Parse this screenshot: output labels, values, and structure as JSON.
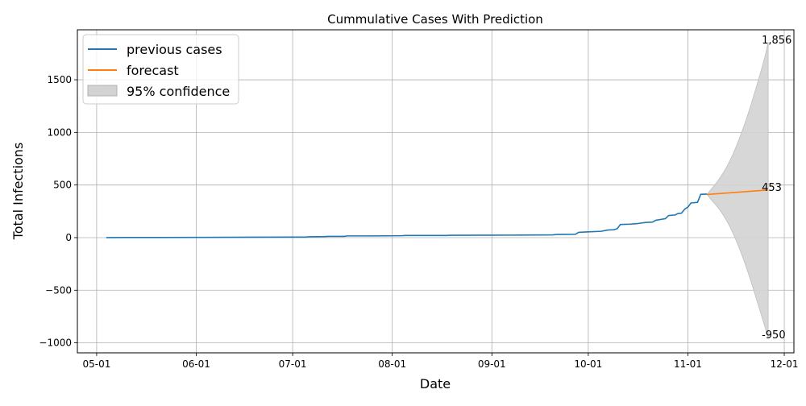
{
  "chart_data": {
    "type": "line",
    "title": "Cummulative Cases With Prediction",
    "xlabel": "Date",
    "ylabel": "Total Infections",
    "x_ticks": [
      "05-01",
      "06-01",
      "07-01",
      "08-01",
      "09-01",
      "10-01",
      "11-01",
      "12-01"
    ],
    "x_tick_dates": [
      "2020-05-01",
      "2020-06-01",
      "2020-07-01",
      "2020-08-01",
      "2020-09-01",
      "2020-10-01",
      "2020-11-01",
      "2020-12-01"
    ],
    "xlim": [
      "2020-04-25",
      "2020-12-04"
    ],
    "y_ticks": [
      -1000,
      -500,
      0,
      500,
      1000,
      1500
    ],
    "y_tick_labels": [
      "−1000",
      "−500",
      "0",
      "500",
      "1000",
      "1500"
    ],
    "ylim": [
      -1095,
      1975
    ],
    "grid": true,
    "legend_position": "top-left",
    "legend": [
      {
        "label": "previous cases",
        "kind": "line",
        "color": "#1f77b4"
      },
      {
        "label": "forecast",
        "kind": "line",
        "color": "#ff7f0e"
      },
      {
        "label": "95% confidence",
        "kind": "band",
        "color": "#d3d3d3"
      }
    ],
    "series": [
      {
        "name": "previous cases",
        "color": "#1f77b4",
        "points": [
          [
            "2020-05-04",
            0
          ],
          [
            "2020-05-10",
            1
          ],
          [
            "2020-05-20",
            1
          ],
          [
            "2020-06-01",
            2
          ],
          [
            "2020-06-10",
            3
          ],
          [
            "2020-06-20",
            4
          ],
          [
            "2020-07-01",
            5
          ],
          [
            "2020-07-05",
            5
          ],
          [
            "2020-07-06",
            8
          ],
          [
            "2020-07-11",
            10
          ],
          [
            "2020-07-12",
            12
          ],
          [
            "2020-07-17",
            12
          ],
          [
            "2020-07-18",
            16
          ],
          [
            "2020-07-25",
            16
          ],
          [
            "2020-08-04",
            18
          ],
          [
            "2020-08-05",
            20
          ],
          [
            "2020-08-18",
            20
          ],
          [
            "2020-08-19",
            22
          ],
          [
            "2020-09-01",
            23
          ],
          [
            "2020-09-10",
            24
          ],
          [
            "2020-09-20",
            26
          ],
          [
            "2020-09-21",
            30
          ],
          [
            "2020-09-27",
            32
          ],
          [
            "2020-09-28",
            50
          ],
          [
            "2020-10-01",
            55
          ],
          [
            "2020-10-05",
            60
          ],
          [
            "2020-10-07",
            72
          ],
          [
            "2020-10-09",
            75
          ],
          [
            "2020-10-10",
            85
          ],
          [
            "2020-10-11",
            125
          ],
          [
            "2020-10-14",
            128
          ],
          [
            "2020-10-16",
            132
          ],
          [
            "2020-10-19",
            145
          ],
          [
            "2020-10-21",
            148
          ],
          [
            "2020-10-22",
            165
          ],
          [
            "2020-10-24",
            175
          ],
          [
            "2020-10-25",
            180
          ],
          [
            "2020-10-26",
            210
          ],
          [
            "2020-10-28",
            215
          ],
          [
            "2020-10-29",
            230
          ],
          [
            "2020-10-30",
            232
          ],
          [
            "2020-10-31",
            270
          ],
          [
            "2020-11-01",
            290
          ],
          [
            "2020-11-02",
            330
          ],
          [
            "2020-11-03",
            332
          ],
          [
            "2020-11-04",
            335
          ],
          [
            "2020-11-05",
            412
          ],
          [
            "2020-11-07",
            414
          ]
        ]
      },
      {
        "name": "forecast",
        "color": "#ff7f0e",
        "points": [
          [
            "2020-11-07",
            410
          ],
          [
            "2020-11-26",
            453
          ]
        ]
      }
    ],
    "confidence_band": {
      "name": "95% confidence",
      "color": "#d3d3d3",
      "points": [
        [
          "2020-11-07",
          410,
          410
        ],
        [
          "2020-11-08",
          369,
          451
        ],
        [
          "2020-11-09",
          335,
          487
        ],
        [
          "2020-11-10",
          300,
          525
        ],
        [
          "2020-11-11",
          260,
          568
        ],
        [
          "2020-11-12",
          215,
          615
        ],
        [
          "2020-11-13",
          165,
          667
        ],
        [
          "2020-11-14",
          108,
          726
        ],
        [
          "2020-11-15",
          45,
          791
        ],
        [
          "2020-11-16",
          -25,
          863
        ],
        [
          "2020-11-17",
          -100,
          940
        ],
        [
          "2020-11-18",
          -180,
          1022
        ],
        [
          "2020-11-19",
          -265,
          1109
        ],
        [
          "2020-11-20",
          -355,
          1201
        ],
        [
          "2020-11-21",
          -450,
          1298
        ],
        [
          "2020-11-22",
          -550,
          1400
        ],
        [
          "2020-11-23",
          -650,
          1504
        ],
        [
          "2020-11-24",
          -750,
          1610
        ],
        [
          "2020-11-25",
          -850,
          1720
        ],
        [
          "2020-11-26",
          -950,
          1856
        ]
      ]
    },
    "annotations": [
      {
        "text": "1,856",
        "date": "2020-11-26",
        "value": 1856
      },
      {
        "text": "453",
        "date": "2020-11-26",
        "value": 453
      },
      {
        "text": "-950",
        "date": "2020-11-26",
        "value": -950
      }
    ]
  }
}
